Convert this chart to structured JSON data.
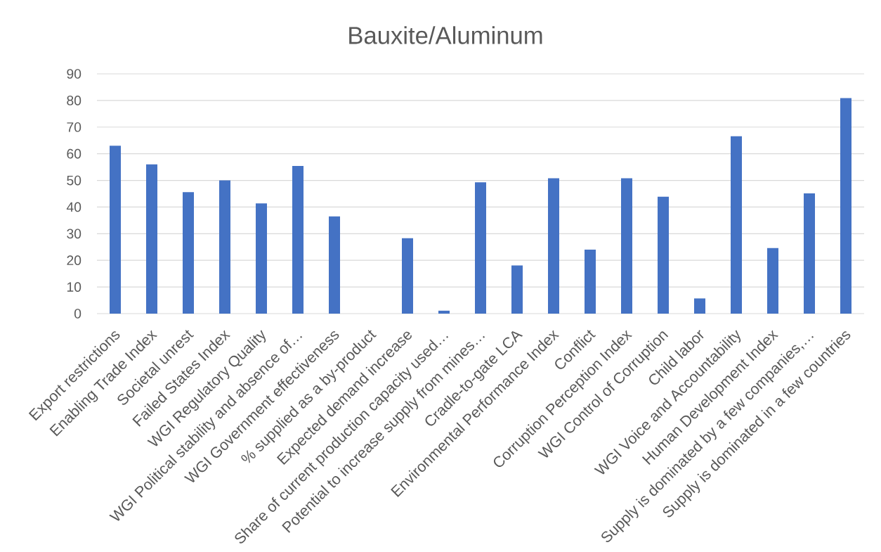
{
  "chart_data": {
    "type": "bar",
    "title": "Bauxite/Aluminum",
    "categories": [
      "Export restrictions",
      "Enabling Trade Index",
      "Societal unrest",
      "Failed States Index",
      "WGI Regulatory Quality",
      "WGI Political stability and absence of…",
      "WGI Government effectiveness",
      "% supplied as a by-product",
      "Expected demand increase",
      "Share of current production capacity used…",
      "Potential to increase supply from mines…",
      "Cradle-to-gate LCA",
      "Environmental Performance Index",
      "Conflict",
      "Corruption Perception Index",
      "WGI Control of Corruption",
      "Child labor",
      "WGI Voice and Accountability",
      "Human Development Index",
      "Supply is dominated by a few companies,…",
      "Supply is dominated in a few countries"
    ],
    "values": [
      63,
      56,
      45.6,
      50,
      41.4,
      55.4,
      36.5,
      0,
      28.3,
      1.1,
      49.3,
      18.1,
      50.8,
      24,
      50.8,
      43.9,
      5.7,
      66.6,
      24.6,
      45.1,
      80.9
    ],
    "color": "#4472c4",
    "ylim": [
      0,
      90
    ],
    "yticks": [
      0,
      10,
      20,
      30,
      40,
      50,
      60,
      70,
      80,
      90
    ],
    "grid": "y"
  }
}
